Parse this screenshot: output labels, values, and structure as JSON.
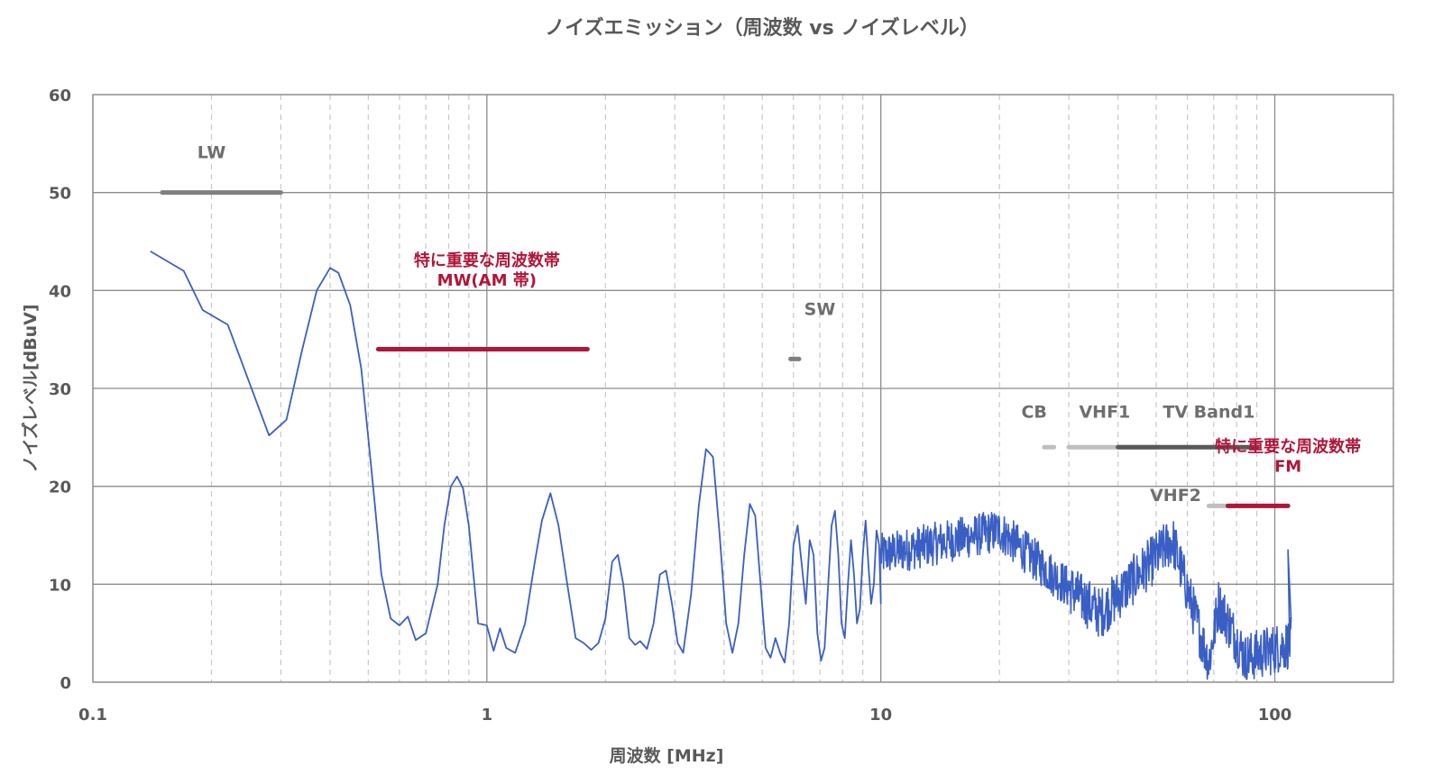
{
  "chart_data": {
    "type": "line",
    "title": "ノイズエミッション（周波数 vs ノイズレベル）",
    "xlabel": "周波数 [MHz]",
    "ylabel": "ノイズレベル[dBuV]",
    "xscale": "log",
    "xlim": [
      0.1,
      200
    ],
    "ylim": [
      0,
      60
    ],
    "x_ticks": [
      0.1,
      1,
      10,
      100
    ],
    "x_tick_labels": [
      "0.1",
      "1",
      "10",
      "100"
    ],
    "y_ticks": [
      0,
      10,
      20,
      30,
      40,
      50,
      60
    ],
    "y_tick_labels": [
      "0",
      "10",
      "20",
      "30",
      "40",
      "50",
      "60"
    ],
    "grid": true,
    "line_color": "#3a5fc4",
    "series": [
      {
        "points": [
          [
            0.14,
            44
          ],
          [
            0.17,
            42
          ],
          [
            0.19,
            38
          ],
          [
            0.22,
            36.5
          ],
          [
            0.28,
            25.2
          ],
          [
            0.31,
            26.8
          ],
          [
            0.34,
            34
          ],
          [
            0.37,
            40
          ],
          [
            0.4,
            42.3
          ],
          [
            0.42,
            41.8
          ],
          [
            0.45,
            38.5
          ],
          [
            0.48,
            32
          ],
          [
            0.5,
            25
          ],
          [
            0.52,
            18
          ],
          [
            0.54,
            11
          ],
          [
            0.57,
            6.5
          ],
          [
            0.6,
            5.8
          ],
          [
            0.63,
            6.7
          ],
          [
            0.66,
            4.3
          ],
          [
            0.7,
            5.0
          ],
          [
            0.75,
            10
          ],
          [
            0.78,
            16
          ],
          [
            0.81,
            20
          ],
          [
            0.84,
            21
          ],
          [
            0.87,
            19.8
          ],
          [
            0.9,
            16
          ],
          [
            0.95,
            6.0
          ],
          [
            1.0,
            5.8
          ],
          [
            1.04,
            3.2
          ],
          [
            1.08,
            5.5
          ],
          [
            1.12,
            3.5
          ],
          [
            1.18,
            3.0
          ],
          [
            1.25,
            6.0
          ],
          [
            1.32,
            12
          ],
          [
            1.38,
            16.5
          ],
          [
            1.45,
            19.3
          ],
          [
            1.52,
            16
          ],
          [
            1.6,
            10
          ],
          [
            1.68,
            4.5
          ],
          [
            1.76,
            4.0
          ],
          [
            1.84,
            3.3
          ],
          [
            1.92,
            4.0
          ],
          [
            2.0,
            6.5
          ],
          [
            2.08,
            12.3
          ],
          [
            2.15,
            13
          ],
          [
            2.22,
            10
          ],
          [
            2.3,
            4.5
          ],
          [
            2.38,
            3.8
          ],
          [
            2.45,
            4.2
          ],
          [
            2.55,
            3.4
          ],
          [
            2.65,
            6.0
          ],
          [
            2.75,
            11
          ],
          [
            2.85,
            11.4
          ],
          [
            2.95,
            8
          ],
          [
            3.05,
            4.0
          ],
          [
            3.15,
            3.0
          ],
          [
            3.3,
            9
          ],
          [
            3.45,
            18
          ],
          [
            3.6,
            23.8
          ],
          [
            3.75,
            23
          ],
          [
            3.9,
            15
          ],
          [
            4.05,
            6
          ],
          [
            4.2,
            3.0
          ],
          [
            4.35,
            6
          ],
          [
            4.5,
            13
          ],
          [
            4.65,
            18.2
          ],
          [
            4.8,
            17
          ],
          [
            4.95,
            10
          ],
          [
            5.1,
            3.5
          ],
          [
            5.25,
            2.5
          ],
          [
            5.4,
            4.5
          ],
          [
            5.55,
            3.0
          ],
          [
            5.7,
            2.0
          ],
          [
            5.85,
            6.0
          ],
          [
            6.0,
            14
          ],
          [
            6.15,
            16
          ],
          [
            6.3,
            12
          ],
          [
            6.45,
            8
          ],
          [
            6.6,
            14.5
          ],
          [
            6.75,
            13
          ],
          [
            6.9,
            5.0
          ],
          [
            7.05,
            2.2
          ],
          [
            7.2,
            3.5
          ],
          [
            7.35,
            10
          ],
          [
            7.5,
            16
          ],
          [
            7.65,
            17.5
          ],
          [
            7.8,
            13
          ],
          [
            7.95,
            6.0
          ],
          [
            8.1,
            4.5
          ],
          [
            8.25,
            10
          ],
          [
            8.4,
            14.5
          ],
          [
            8.55,
            11
          ],
          [
            8.7,
            6.0
          ],
          [
            8.85,
            7.5
          ],
          [
            9.0,
            13
          ],
          [
            9.15,
            16.5
          ],
          [
            9.3,
            12
          ],
          [
            9.45,
            8
          ],
          [
            9.6,
            10
          ],
          [
            9.75,
            15.5
          ],
          [
            9.9,
            14
          ],
          [
            10.0,
            8
          ]
        ]
      }
    ],
    "bands": [
      {
        "label": "LW",
        "x_start": 0.15,
        "x_end": 0.3,
        "y": 50,
        "color": "#7f7f7f",
        "label_x": 0.2,
        "label_y": 53.5,
        "label_color": "#6e6e6e"
      },
      {
        "label": "特に重要な周波数帯\nMW(AM 帯)",
        "x_start": 0.53,
        "x_end": 1.8,
        "y": 34,
        "color": "#b0163a",
        "label_x": 1.0,
        "label_y": 40.5,
        "label_color": "#b0163a"
      },
      {
        "label": "SW",
        "x_start": 5.9,
        "x_end": 6.2,
        "y": 33,
        "color": "#7f7f7f",
        "label_x": 7.0,
        "label_y": 37.5,
        "label_color": "#6e6e6e"
      },
      {
        "label": "CB",
        "x_start": 26.0,
        "x_end": 27.5,
        "y": 24,
        "color": "#bfbfbf",
        "label_x": 24.5,
        "label_y": 27.0,
        "label_color": "#7f7f7f"
      },
      {
        "label": "VHF1",
        "x_start": 30.0,
        "x_end": 50.0,
        "y": 24,
        "color": "#bfbfbf",
        "label_x": 37.0,
        "label_y": 27.0,
        "label_color": "#7f7f7f"
      },
      {
        "label": "TV  Band1",
        "x_start": 40.0,
        "x_end": 90.0,
        "y": 24,
        "color": "#595959",
        "label_x": 68.0,
        "label_y": 27.0,
        "label_color": "#6e6e6e"
      },
      {
        "label": "VHF2",
        "x_start": 68.0,
        "x_end": 88.0,
        "y": 18,
        "color": "#bfbfbf",
        "label_x": 56.0,
        "label_y": 18.5,
        "label_color": "#7f7f7f"
      },
      {
        "label": "特に重要な周波数帯\nFM",
        "x_start": 76.0,
        "x_end": 108.0,
        "y": 18,
        "color": "#b0163a",
        "label_x": 108.0,
        "label_y": 21.5,
        "label_color": "#b0163a"
      }
    ]
  }
}
